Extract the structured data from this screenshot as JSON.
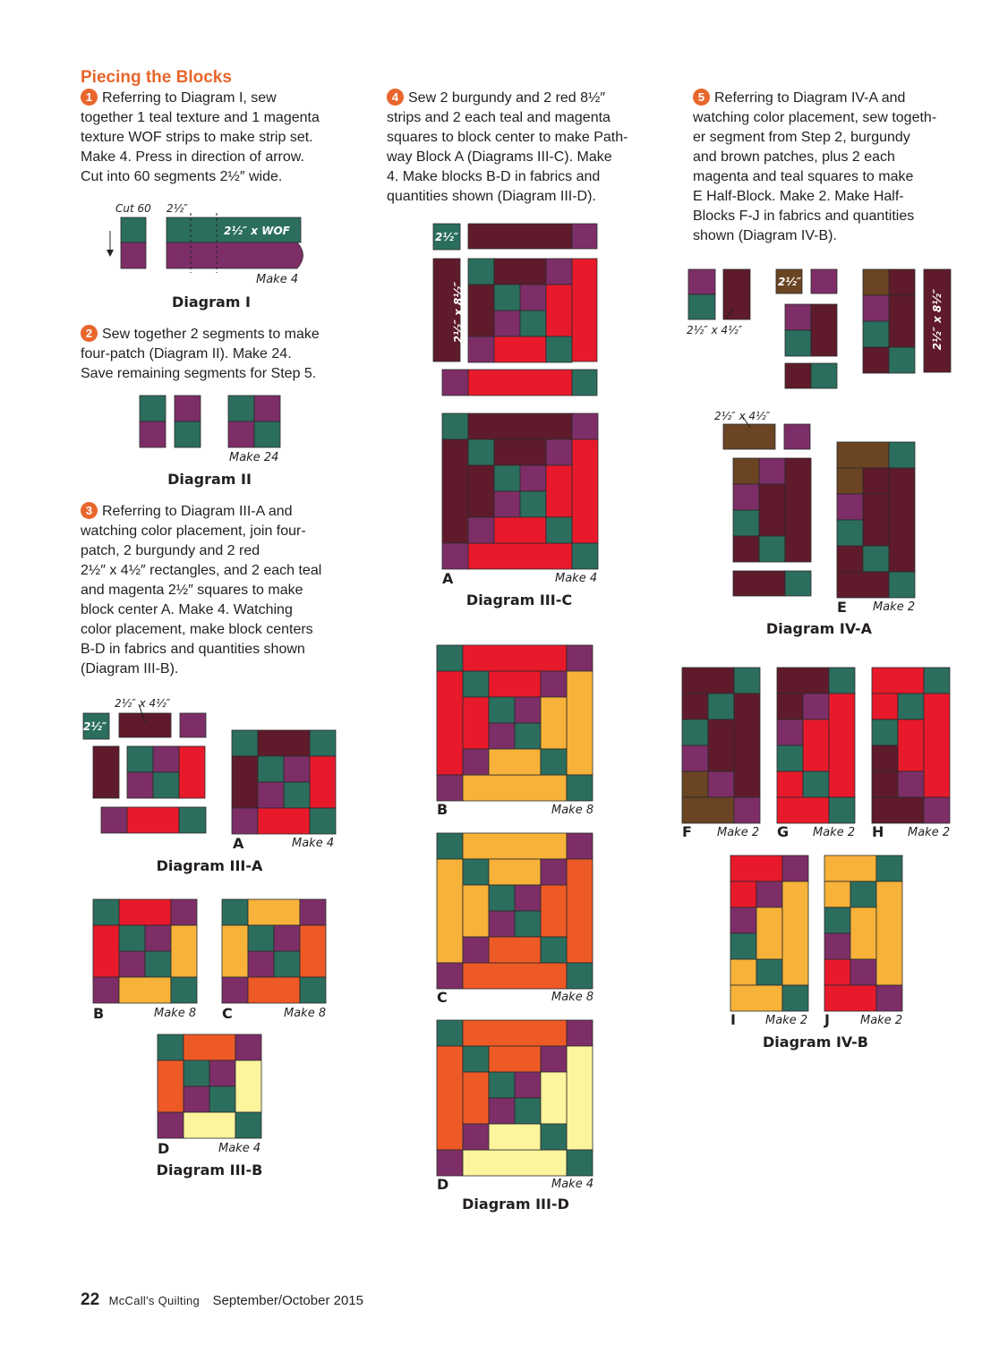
{
  "colors": {
    "teal": "#2b6e5e",
    "magenta": "#7d2e67",
    "burgundy": "#5f1b2b",
    "red": "#e8192b",
    "gold": "#f7b23a",
    "orange": "#ee5a26",
    "yellow": "#fdf59d",
    "brown": "#6b4423",
    "accent": "#e8662c"
  },
  "heading": "Piecing the Blocks",
  "steps": [
    {
      "num": "1",
      "lines": [
        "Referring to Diagram I, sew",
        "together 1 teal texture and 1 magenta",
        "texture WOF strips to make strip set.",
        "Make 4. Press in direction of arrow.",
        "Cut into 60 segments 2½″ wide."
      ]
    },
    {
      "num": "2",
      "lines": [
        "Sew together 2 segments to make",
        "four-patch (Diagram II). Make 24.",
        "Save remaining segments for Step 5."
      ]
    },
    {
      "num": "3",
      "lines": [
        "Referring to Diagram III-A and",
        "watching color placement, join four-",
        "patch, 2 burgundy and 2 red",
        "2½″ x 4½″ rectangles, and 2 each teal",
        "and magenta 2½″ squares to make",
        "block center A. Make 4. Watching",
        "color placement, make block centers",
        "B-D in fabrics and quantities shown",
        "(Diagram III-B)."
      ]
    },
    {
      "num": "4",
      "lines": [
        "Sew 2 burgundy and 2 red 8½″",
        "strips and 2 each teal and magenta",
        "squares to block center to make Path-",
        "way Block A (Diagrams III-C). Make",
        "4. Make blocks B-D in fabrics and",
        "quantities shown (Diagram III-D)."
      ]
    },
    {
      "num": "5",
      "lines": [
        "Referring to Diagram IV-A and",
        "watching color placement, sew togeth-",
        "er segment from Step 2, burgundy",
        "and brown patches, plus 2 each",
        "magenta and teal squares to make",
        "E Half-Block. Make 2. Make Half-",
        "Blocks F-J in fabrics and quantities",
        "shown (Diagram IV-B)."
      ]
    }
  ],
  "diagrams": {
    "d1": {
      "caption": "Diagram I",
      "cut": "Cut 60",
      "seg": "2½″",
      "strip": "2½″ x WOF",
      "make": "Make 4"
    },
    "d2": {
      "caption": "Diagram II",
      "make": "Make 24"
    },
    "d3a": {
      "caption": "Diagram III-A",
      "sq": "2½″",
      "rect": "2½″ x 4½″",
      "letter": "A",
      "make": "Make 4"
    },
    "d3b": {
      "caption": "Diagram III-B",
      "blocks": [
        {
          "letter": "B",
          "make": "Make 8"
        },
        {
          "letter": "C",
          "make": "Make 8"
        },
        {
          "letter": "D",
          "make": "Make 4"
        }
      ]
    },
    "d3c": {
      "caption": "Diagram III-C",
      "sq": "2½″",
      "strip": "2½″ x 8½″",
      "letter": "A",
      "make": "Make 4"
    },
    "d3d": {
      "caption": "Diagram III-D",
      "blocks": [
        {
          "letter": "B",
          "make": "Make 8"
        },
        {
          "letter": "C",
          "make": "Make 8"
        },
        {
          "letter": "D",
          "make": "Make 4"
        }
      ]
    },
    "d4a": {
      "caption": "Diagram IV-A",
      "rect": "2½″ x 4½″",
      "sq": "2½″",
      "strip": "2½″ x 8½″",
      "rect2": "2½″ x 4½″",
      "letter": "E",
      "make": "Make 2"
    },
    "d4b": {
      "caption": "Diagram IV-B",
      "blocks": [
        {
          "letter": "F",
          "make": "Make 2"
        },
        {
          "letter": "G",
          "make": "Make 2"
        },
        {
          "letter": "H",
          "make": "Make 2"
        },
        {
          "letter": "I",
          "make": "Make 2"
        },
        {
          "letter": "J",
          "make": "Make 2"
        }
      ]
    }
  },
  "footer": {
    "page": "22",
    "magazine": "McCall's Quilting",
    "issue": "September/October 2015"
  }
}
